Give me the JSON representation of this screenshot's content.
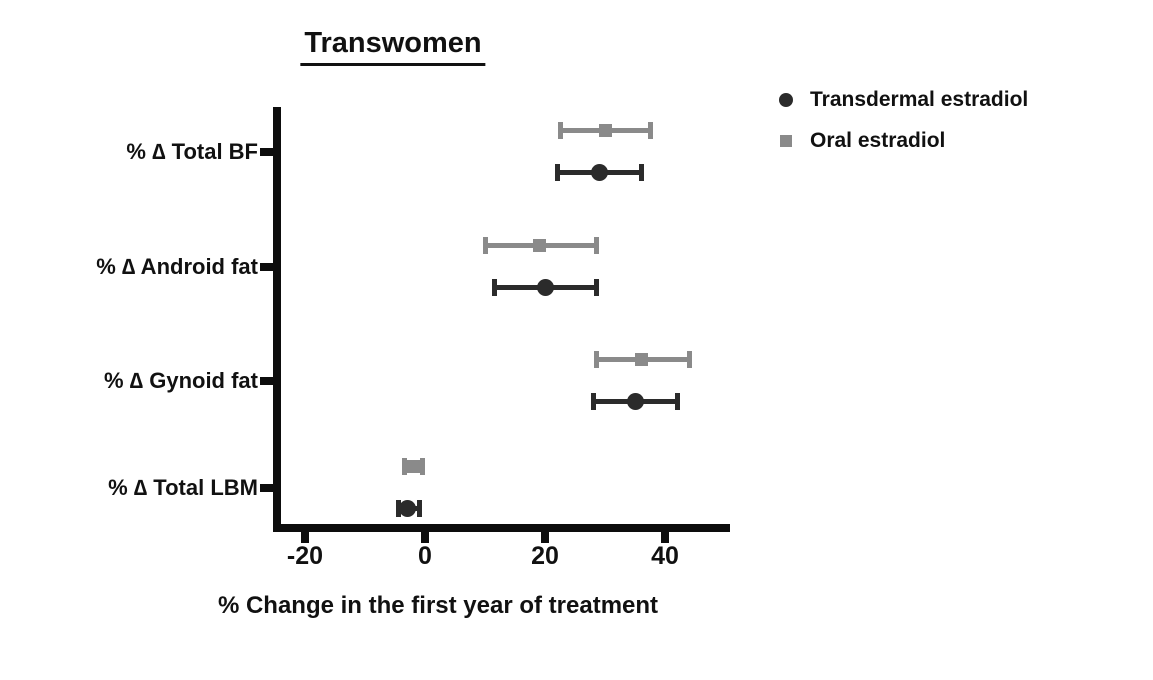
{
  "title": "Transwomen",
  "x_axis_label": "% Change in the first year of treatment",
  "chart_data": {
    "type": "scatter",
    "subtype": "horizontal-dot-plot-with-error-bars",
    "title": "Transwomen",
    "xlabel": "% Change in the first year of treatment",
    "ylabel": "",
    "grid": false,
    "legend_position": "top-right",
    "categories": [
      "% ∆ Total BF",
      "% ∆ Android fat",
      "% ∆ Gynoid fat",
      "% ∆ Total LBM"
    ],
    "xtick_labels": [
      "-20",
      "0",
      "20",
      "40"
    ],
    "xtick_values": [
      -20,
      0,
      20,
      40
    ],
    "xlim": [
      -25.5,
      51
    ],
    "axis_color": "#0d0d0d",
    "series": [
      {
        "name": "Transdermal estradiol",
        "marker": "circle",
        "color": "#2b2b2b",
        "values": [
          29,
          20,
          35,
          -3
        ],
        "ci_low": [
          22,
          11.5,
          28,
          -4.5
        ],
        "ci_high": [
          36,
          28.5,
          42,
          -1
        ]
      },
      {
        "name": "Oral estradiol",
        "marker": "square",
        "color": "#8a8a8a",
        "values": [
          30,
          19,
          36,
          -2
        ],
        "ci_low": [
          22.5,
          10,
          28.5,
          -3.5
        ],
        "ci_high": [
          37.5,
          28.5,
          44,
          -0.5
        ]
      }
    ]
  }
}
